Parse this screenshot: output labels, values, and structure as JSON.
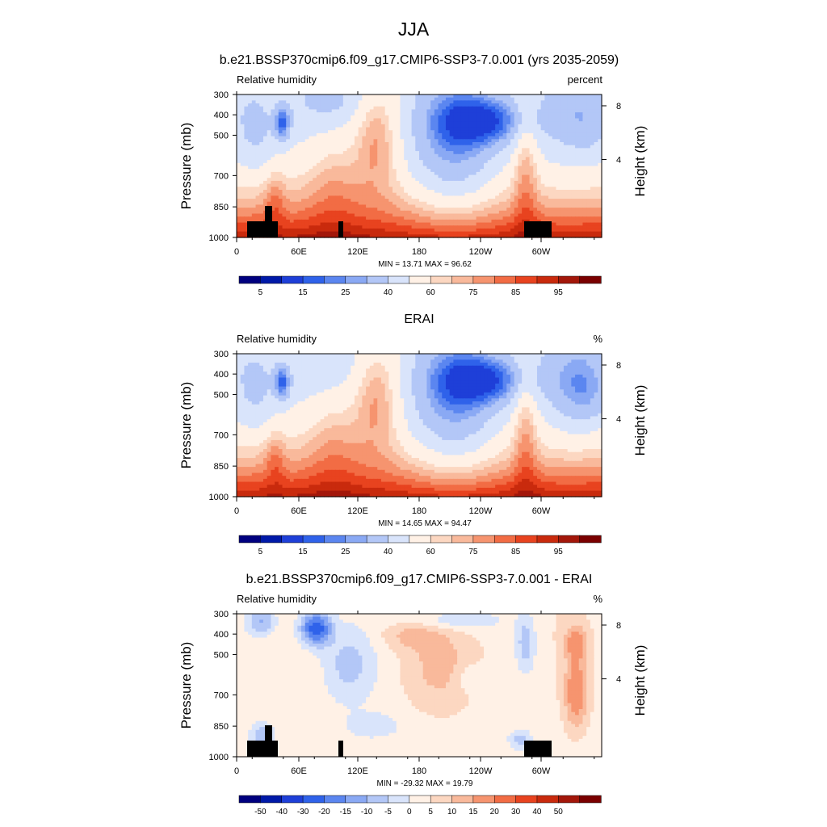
{
  "figure_title": "JJA",
  "colors": {
    "absolute_levels": [
      "#00007f",
      "#0019a8",
      "#1e3fd8",
      "#2f62ea",
      "#5b86f0",
      "#8aa9f4",
      "#b3c7f7",
      "#d9e4fb",
      "#fff1e6",
      "#fcd7c1",
      "#f9b99b",
      "#f6946f",
      "#f26c44",
      "#e8431f",
      "#c92a0d",
      "#a3170a",
      "#7a0000"
    ],
    "diff_levels": [
      "#00007f",
      "#0019a8",
      "#1e3fd8",
      "#2f62ea",
      "#5b86f0",
      "#8aa9f4",
      "#b3c7f7",
      "#d9e4fb",
      "#fff1e6",
      "#fcd7c1",
      "#f9b99b",
      "#f6946f",
      "#f26c44",
      "#e8431f",
      "#c92a0d",
      "#a3170a",
      "#7a0000"
    ],
    "terrain": "#000000"
  },
  "chart_data": [
    {
      "type": "heatmap",
      "title": "b.e21.BSSP370cmip6.f09_g17.CMIP6-SSP3-7.0.001 (yrs 2035-2059)",
      "left_label": "Relative humidity",
      "right_label": "percent",
      "ylabel": "Pressure (mb)",
      "ylabel_right": "Height (km)",
      "x_ticks": [
        "0",
        "60E",
        "120E",
        "180",
        "120W",
        "60W"
      ],
      "y_ticks": [
        "300",
        "400",
        "500",
        "700",
        "850",
        "1000"
      ],
      "height_ticks": [
        "8",
        "4"
      ],
      "stats": "MIN =  13.71  MAX =  96.62",
      "colorbar_labels": [
        "5",
        "15",
        "25",
        "40",
        "60",
        "75",
        "85",
        "95"
      ],
      "xlim": [
        0,
        360
      ],
      "ylim": [
        1000,
        300
      ],
      "min": 13.71,
      "max": 96.62
    },
    {
      "type": "heatmap",
      "title": "ERAI",
      "left_label": "Relative humidity",
      "right_label": "%",
      "ylabel": "Pressure (mb)",
      "ylabel_right": "Height (km)",
      "x_ticks": [
        "0",
        "60E",
        "120E",
        "180",
        "120W",
        "60W"
      ],
      "y_ticks": [
        "300",
        "400",
        "500",
        "700",
        "850",
        "1000"
      ],
      "height_ticks": [
        "8",
        "4"
      ],
      "stats": "MIN =  14.65  MAX =  94.47",
      "colorbar_labels": [
        "5",
        "15",
        "25",
        "40",
        "60",
        "75",
        "85",
        "95"
      ],
      "xlim": [
        0,
        360
      ],
      "ylim": [
        1000,
        300
      ],
      "min": 14.65,
      "max": 94.47
    },
    {
      "type": "heatmap",
      "title": "b.e21.BSSP370cmip6.f09_g17.CMIP6-SSP3-7.0.001 - ERAI",
      "left_label": "Relative humidity",
      "right_label": "%",
      "ylabel": "Pressure (mb)",
      "ylabel_right": "Height (km)",
      "x_ticks": [
        "0",
        "60E",
        "120E",
        "180",
        "120W",
        "60W"
      ],
      "y_ticks": [
        "300",
        "400",
        "500",
        "700",
        "850",
        "1000"
      ],
      "height_ticks": [
        "8",
        "4"
      ],
      "stats": "MIN = -29.32  MAX =  19.79",
      "colorbar_labels": [
        "-50",
        "-40",
        "-30",
        "-20",
        "-15",
        "-10",
        "-5",
        "0",
        "5",
        "10",
        "15",
        "20",
        "30",
        "40",
        "50"
      ],
      "xlim": [
        0,
        360
      ],
      "ylim": [
        1000,
        300
      ],
      "min": -29.32,
      "max": 19.79
    }
  ]
}
